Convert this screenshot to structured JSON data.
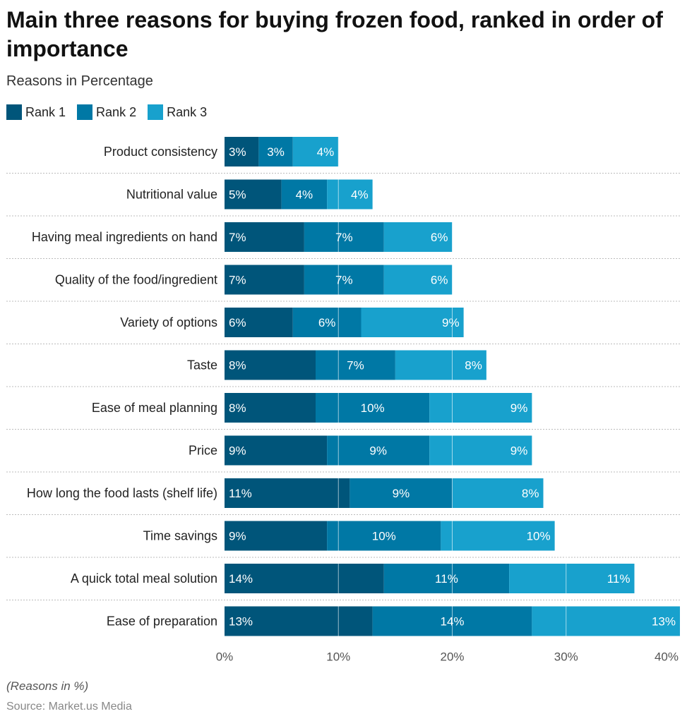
{
  "title": "Main three reasons for buying frozen food, ranked in order of importance",
  "subtitle": "Reasons in Percentage",
  "note": "(Reasons in %)",
  "source": "Source: Market.us Media",
  "chart_data": {
    "type": "bar",
    "orientation": "horizontal",
    "stacked": true,
    "categories": [
      "Product consistency",
      "Nutritional value",
      "Having meal ingredients on hand",
      "Quality of the food/ingredient",
      "Variety of options",
      "Taste",
      "Ease of meal planning",
      "Price",
      "How long the food lasts (shelf life)",
      "Time savings",
      "A quick total meal solution",
      "Ease of preparation"
    ],
    "series": [
      {
        "name": "Rank 1",
        "color": "#00557a",
        "values": [
          3,
          5,
          7,
          7,
          6,
          8,
          8,
          9,
          11,
          9,
          14,
          13
        ]
      },
      {
        "name": "Rank 2",
        "color": "#0078a5",
        "values": [
          3,
          4,
          7,
          7,
          6,
          7,
          10,
          9,
          9,
          10,
          11,
          14
        ]
      },
      {
        "name": "Rank 3",
        "color": "#18a1cd",
        "values": [
          4,
          4,
          6,
          6,
          9,
          8,
          9,
          9,
          8,
          10,
          11,
          13
        ]
      }
    ],
    "xlim": [
      0,
      40
    ],
    "xticks": [
      "0%",
      "10%",
      "20%",
      "30%",
      "40%"
    ],
    "legend": "top-left",
    "grid": true
  }
}
